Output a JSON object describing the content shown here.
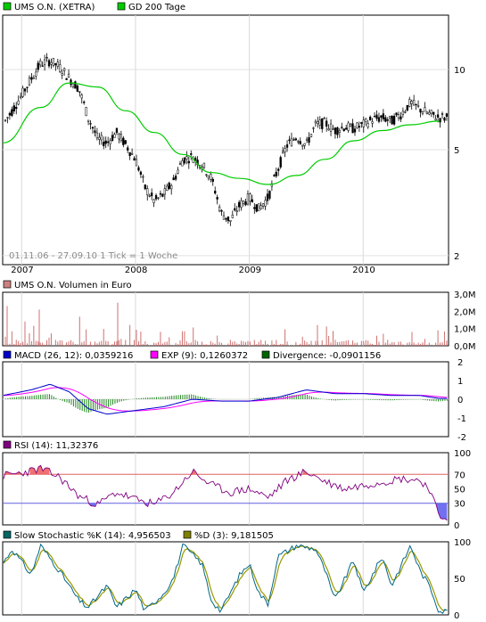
{
  "chart_data": [
    {
      "type": "candlestick",
      "panel": "price",
      "legend": [
        {
          "label": "UMS O.N. (XETRA)",
          "color": "#00cc00"
        },
        {
          "label": "GD 200 Tage",
          "color": "#00cc00"
        }
      ],
      "period_label": "01.11.06 - 27.09.10",
      "tick_label": "1 Tick = 1 Woche",
      "x_labels": [
        "2007",
        "2008",
        "2009",
        "2010"
      ],
      "y_labels": [
        "10",
        "5",
        "2"
      ],
      "scale": "log",
      "price_points": [
        {
          "t": "2006-11",
          "v": 6.2
        },
        {
          "t": "2006-12",
          "v": 7.0
        },
        {
          "t": "2007-01",
          "v": 8.0
        },
        {
          "t": "2007-02",
          "v": 9.2
        },
        {
          "t": "2007-03",
          "v": 10.5
        },
        {
          "t": "2007-04",
          "v": 10.8
        },
        {
          "t": "2007-05",
          "v": 10.2
        },
        {
          "t": "2007-06",
          "v": 9.3
        },
        {
          "t": "2007-07",
          "v": 8.5
        },
        {
          "t": "2007-08",
          "v": 6.6
        },
        {
          "t": "2007-09",
          "v": 5.5
        },
        {
          "t": "2007-10",
          "v": 5.3
        },
        {
          "t": "2007-11",
          "v": 5.8
        },
        {
          "t": "2007-12",
          "v": 5.2
        },
        {
          "t": "2008-01",
          "v": 4.6
        },
        {
          "t": "2008-02",
          "v": 3.6
        },
        {
          "t": "2008-03",
          "v": 3.2
        },
        {
          "t": "2008-04",
          "v": 3.4
        },
        {
          "t": "2008-05",
          "v": 3.8
        },
        {
          "t": "2008-06",
          "v": 4.6
        },
        {
          "t": "2008-07",
          "v": 4.7
        },
        {
          "t": "2008-08",
          "v": 4.4
        },
        {
          "t": "2008-09",
          "v": 3.9
        },
        {
          "t": "2008-10",
          "v": 2.9
        },
        {
          "t": "2008-11",
          "v": 2.7
        },
        {
          "t": "2008-12",
          "v": 3.1
        },
        {
          "t": "2009-01",
          "v": 3.3
        },
        {
          "t": "2009-02",
          "v": 3.0
        },
        {
          "t": "2009-03",
          "v": 3.3
        },
        {
          "t": "2009-04",
          "v": 4.2
        },
        {
          "t": "2009-05",
          "v": 5.2
        },
        {
          "t": "2009-06",
          "v": 5.6
        },
        {
          "t": "2009-07",
          "v": 5.2
        },
        {
          "t": "2009-08",
          "v": 6.2
        },
        {
          "t": "2009-09",
          "v": 6.3
        },
        {
          "t": "2009-10",
          "v": 5.9
        },
        {
          "t": "2009-11",
          "v": 6.1
        },
        {
          "t": "2009-12",
          "v": 6.0
        },
        {
          "t": "2010-01",
          "v": 6.2
        },
        {
          "t": "2010-02",
          "v": 6.5
        },
        {
          "t": "2010-03",
          "v": 6.6
        },
        {
          "t": "2010-04",
          "v": 6.4
        },
        {
          "t": "2010-05",
          "v": 6.8
        },
        {
          "t": "2010-06",
          "v": 7.5
        },
        {
          "t": "2010-07",
          "v": 7.1
        },
        {
          "t": "2010-08",
          "v": 6.8
        },
        {
          "t": "2010-09",
          "v": 6.6
        }
      ],
      "ma_points": [
        {
          "t": "2006-11",
          "v": 5.3
        },
        {
          "t": "2007-03",
          "v": 7.2
        },
        {
          "t": "2007-06",
          "v": 8.9
        },
        {
          "t": "2007-09",
          "v": 8.6
        },
        {
          "t": "2007-12",
          "v": 7.0
        },
        {
          "t": "2008-03",
          "v": 5.8
        },
        {
          "t": "2008-06",
          "v": 4.8
        },
        {
          "t": "2008-09",
          "v": 4.1
        },
        {
          "t": "2008-12",
          "v": 3.9
        },
        {
          "t": "2009-03",
          "v": 3.7
        },
        {
          "t": "2009-06",
          "v": 4.0
        },
        {
          "t": "2009-09",
          "v": 4.6
        },
        {
          "t": "2009-12",
          "v": 5.4
        },
        {
          "t": "2010-03",
          "v": 5.9
        },
        {
          "t": "2010-06",
          "v": 6.2
        },
        {
          "t": "2010-09",
          "v": 6.4
        }
      ]
    },
    {
      "type": "bar",
      "panel": "volume",
      "legend": [
        {
          "label": "UMS O.N. Volumen in Euro",
          "color": "#cc8080"
        }
      ],
      "y_labels": [
        "3,0M",
        "2,0M",
        "1,0M",
        "0,0M"
      ],
      "note": "weekly volume bars, mostly below 1,0M with spikes up to about 2,5M"
    },
    {
      "type": "line",
      "panel": "macd",
      "legend": [
        {
          "label": "MACD (26, 12): 0,0359216",
          "color": "#0000cc"
        },
        {
          "label": "EXP (9): 0,1260372",
          "color": "#ff00ff"
        },
        {
          "label": "Divergence: -0,0901156",
          "color": "#006600"
        }
      ],
      "y_labels": [
        "2",
        "1",
        "0",
        "-1",
        "-2"
      ],
      "macd_points": [
        {
          "t": "2006-11",
          "v": 0.2
        },
        {
          "t": "2007-02",
          "v": 0.5
        },
        {
          "t": "2007-04",
          "v": 0.8
        },
        {
          "t": "2007-06",
          "v": 0.4
        },
        {
          "t": "2007-08",
          "v": -0.5
        },
        {
          "t": "2007-10",
          "v": -0.8
        },
        {
          "t": "2008-01",
          "v": -0.6
        },
        {
          "t": "2008-04",
          "v": -0.4
        },
        {
          "t": "2008-07",
          "v": 0.0
        },
        {
          "t": "2008-10",
          "v": -0.1
        },
        {
          "t": "2009-01",
          "v": -0.1
        },
        {
          "t": "2009-04",
          "v": 0.1
        },
        {
          "t": "2009-07",
          "v": 0.5
        },
        {
          "t": "2009-10",
          "v": 0.3
        },
        {
          "t": "2010-01",
          "v": 0.3
        },
        {
          "t": "2010-04",
          "v": 0.2
        },
        {
          "t": "2010-07",
          "v": 0.2
        },
        {
          "t": "2010-09",
          "v": 0.04
        }
      ]
    },
    {
      "type": "line",
      "panel": "rsi",
      "legend": [
        {
          "label": "RSI (14): 11,32376",
          "color": "#800080"
        }
      ],
      "y_labels": [
        "100",
        "70",
        "50",
        "30",
        "0"
      ],
      "levels": [
        70,
        30
      ],
      "rsi_points": [
        {
          "t": "2006-11",
          "v": 68
        },
        {
          "t": "2007-01",
          "v": 72
        },
        {
          "t": "2007-03",
          "v": 78
        },
        {
          "t": "2007-05",
          "v": 66
        },
        {
          "t": "2007-07",
          "v": 40
        },
        {
          "t": "2007-09",
          "v": 28
        },
        {
          "t": "2007-11",
          "v": 45
        },
        {
          "t": "2008-01",
          "v": 35
        },
        {
          "t": "2008-03",
          "v": 28
        },
        {
          "t": "2008-05",
          "v": 45
        },
        {
          "t": "2008-07",
          "v": 74
        },
        {
          "t": "2008-09",
          "v": 55
        },
        {
          "t": "2008-11",
          "v": 45
        },
        {
          "t": "2009-01",
          "v": 50
        },
        {
          "t": "2009-03",
          "v": 38
        },
        {
          "t": "2009-05",
          "v": 62
        },
        {
          "t": "2009-07",
          "v": 74
        },
        {
          "t": "2009-09",
          "v": 60
        },
        {
          "t": "2009-11",
          "v": 50
        },
        {
          "t": "2010-01",
          "v": 55
        },
        {
          "t": "2010-03",
          "v": 60
        },
        {
          "t": "2010-05",
          "v": 64
        },
        {
          "t": "2010-07",
          "v": 62
        },
        {
          "t": "2010-08",
          "v": 50
        },
        {
          "t": "2010-09",
          "v": 11
        }
      ]
    },
    {
      "type": "line",
      "panel": "stochastic",
      "legend": [
        {
          "label": "Slow Stochastic %K (14): 4,956503",
          "color": "#006666"
        },
        {
          "label": "%D (3): 9,181505",
          "color": "#808000"
        }
      ],
      "y_labels": [
        "100",
        "50",
        "0"
      ],
      "k_points": [
        {
          "t": "2006-11",
          "v": 70
        },
        {
          "t": "2006-12",
          "v": 90
        },
        {
          "t": "2007-02",
          "v": 55
        },
        {
          "t": "2007-03",
          "v": 95
        },
        {
          "t": "2007-05",
          "v": 60
        },
        {
          "t": "2007-07",
          "v": 20
        },
        {
          "t": "2007-08",
          "v": 10
        },
        {
          "t": "2007-10",
          "v": 40
        },
        {
          "t": "2007-11",
          "v": 10
        },
        {
          "t": "2008-01",
          "v": 35
        },
        {
          "t": "2008-02",
          "v": 5
        },
        {
          "t": "2008-04",
          "v": 30
        },
        {
          "t": "2008-05",
          "v": 50
        },
        {
          "t": "2008-06",
          "v": 95
        },
        {
          "t": "2008-08",
          "v": 70
        },
        {
          "t": "2008-09",
          "v": 20
        },
        {
          "t": "2008-10",
          "v": 5
        },
        {
          "t": "2008-12",
          "v": 55
        },
        {
          "t": "2009-01",
          "v": 70
        },
        {
          "t": "2009-02",
          "v": 30
        },
        {
          "t": "2009-03",
          "v": 15
        },
        {
          "t": "2009-04",
          "v": 80
        },
        {
          "t": "2009-06",
          "v": 95
        },
        {
          "t": "2009-08",
          "v": 90
        },
        {
          "t": "2009-09",
          "v": 60
        },
        {
          "t": "2009-10",
          "v": 20
        },
        {
          "t": "2009-12",
          "v": 75
        },
        {
          "t": "2010-01",
          "v": 30
        },
        {
          "t": "2010-03",
          "v": 80
        },
        {
          "t": "2010-04",
          "v": 40
        },
        {
          "t": "2010-06",
          "v": 95
        },
        {
          "t": "2010-07",
          "v": 60
        },
        {
          "t": "2010-08",
          "v": 40
        },
        {
          "t": "2010-09",
          "v": 5
        }
      ]
    }
  ]
}
